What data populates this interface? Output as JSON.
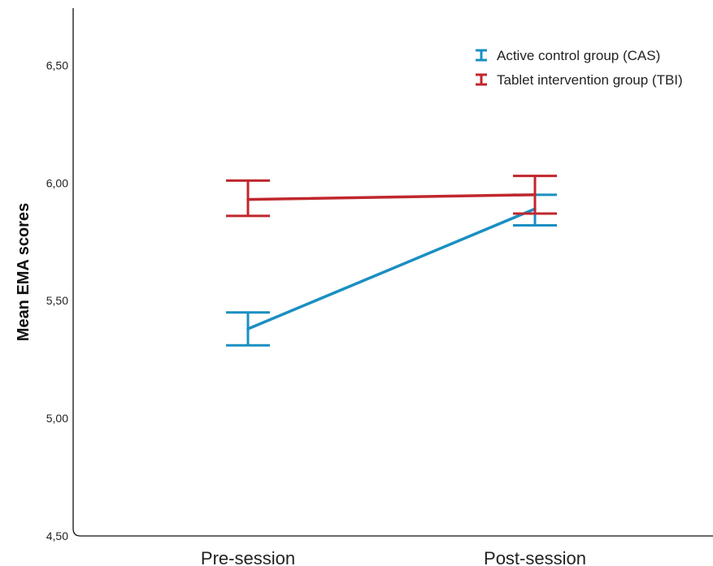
{
  "chart_data": {
    "type": "line",
    "categories": [
      "Pre-session",
      "Post-session"
    ],
    "ylabel": "Mean EMA scores",
    "ylim": [
      4.5,
      6.75
    ],
    "yticks": [
      4.5,
      5.0,
      5.5,
      6.0,
      6.5
    ],
    "ytick_labels": [
      "4,50",
      "5,00",
      "5,50",
      "6,00",
      "6,50"
    ],
    "grid": false,
    "legend_position": "top-right",
    "series": [
      {
        "name": "Active control group (CAS)",
        "color": "#1a8fc2",
        "values": [
          5.38,
          5.89
        ],
        "err_low": [
          5.31,
          5.82
        ],
        "err_high": [
          5.45,
          5.95
        ]
      },
      {
        "name": "Tablet intervention group (TBI)",
        "color": "#c0272d",
        "values": [
          5.93,
          5.95
        ],
        "err_low": [
          5.86,
          5.87
        ],
        "err_high": [
          6.01,
          6.03
        ]
      }
    ]
  }
}
